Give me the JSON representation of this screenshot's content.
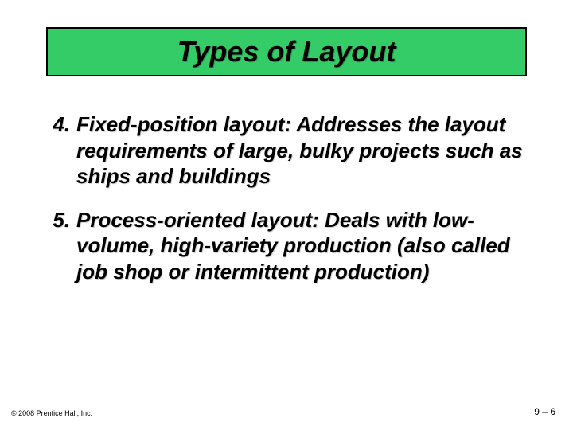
{
  "slide": {
    "title": "Types of Layout",
    "title_box": {
      "background_color": "#33cc66",
      "border_color": "#000000",
      "border_width": 2
    },
    "items": [
      {
        "num": "4.",
        "text": "Fixed-position layout: Addresses the layout requirements of large, bulky projects such as ships and buildings"
      },
      {
        "num": "5.",
        "text": "Process-oriented layout: Deals with low-volume, high-variety production (also called job shop or intermittent production)"
      }
    ],
    "typography": {
      "title_fontsize": 36,
      "body_fontsize": 26,
      "font_family": "Arial",
      "font_style": "italic",
      "font_weight": "bold",
      "text_color": "#000000"
    },
    "footer": {
      "copyright": "© 2008 Prentice Hall, Inc.",
      "page": "9 – 6"
    },
    "background_color": "#ffffff"
  }
}
